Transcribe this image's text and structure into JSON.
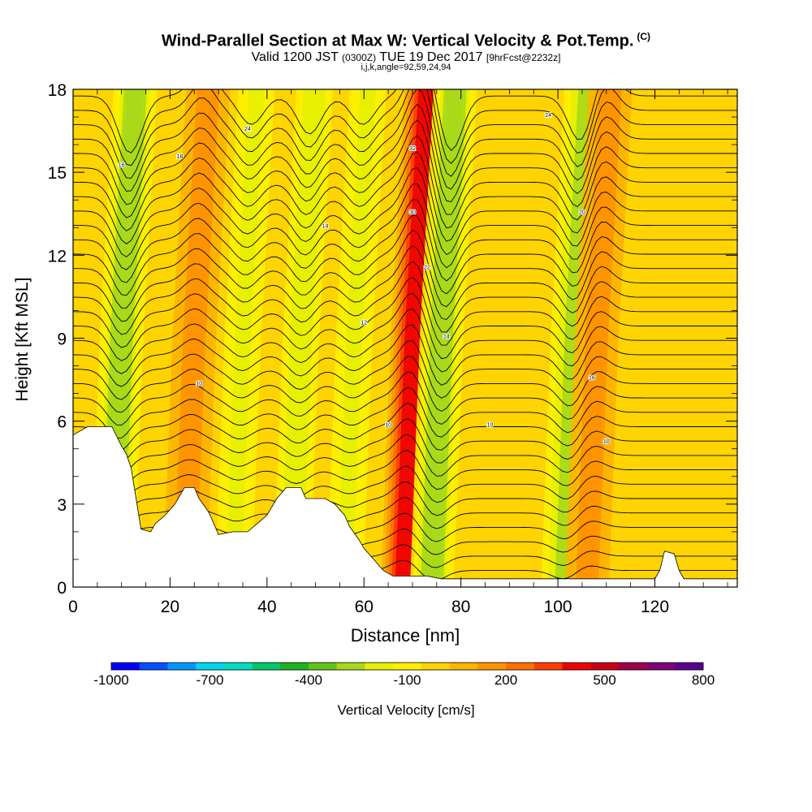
{
  "chart_data": {
    "type": "heatmap",
    "title": "Wind-Parallel Section at Max W: Vertical Velocity & Pot.Temp.",
    "title_tag": "(C)",
    "subtitle_parts": [
      "Valid 1200 JST",
      "(0300Z)",
      "TUE 19 Dec 2017",
      "[9hrFcst@2232z]"
    ],
    "subtitle2": "i,j,k,angle=92,59,24,94",
    "xlabel": "Distance [nm]",
    "ylabel": "Height [Kft MSL]",
    "xlim": [
      0,
      137
    ],
    "ylim": [
      0,
      18
    ],
    "x_ticks": [
      0,
      20,
      40,
      60,
      80,
      100,
      120
    ],
    "y_ticks": [
      0,
      3,
      6,
      9,
      12,
      15,
      18
    ],
    "colorbar": {
      "label": "Vertical Velocity [cm/s]",
      "tick_labels": [
        "-1000",
        "-700",
        "-400",
        "-100",
        "200",
        "500",
        "800"
      ],
      "tick_values": [
        -1000,
        -700,
        -400,
        -100,
        200,
        500,
        800
      ],
      "colors": [
        "#0000ff",
        "#0050ff",
        "#0095ff",
        "#00d5f0",
        "#00dcc0",
        "#00c868",
        "#20b020",
        "#60c418",
        "#a8d81a",
        "#e6ef00",
        "#fff000",
        "#ffd400",
        "#ffb400",
        "#ff9400",
        "#ff7000",
        "#ff3c00",
        "#f00000",
        "#c80014",
        "#a0004a",
        "#80007a",
        "#5a0090"
      ],
      "min": -1000,
      "max": 800
    },
    "velocity_features": [
      {
        "x": 10,
        "kind": "downdraft",
        "value": -300
      },
      {
        "x": 25,
        "kind": "updraft",
        "value": 150
      },
      {
        "x": 35,
        "kind": "downdraft",
        "value": -150
      },
      {
        "x": 47,
        "kind": "downdraft",
        "value": -200
      },
      {
        "x": 58,
        "kind": "downdraft",
        "value": -150
      },
      {
        "x": 70,
        "kind": "updraft",
        "value": 450
      },
      {
        "x": 76,
        "kind": "downdraft",
        "value": -300
      },
      {
        "x": 103,
        "kind": "downdraft",
        "value": -250
      },
      {
        "x": 108,
        "kind": "updraft",
        "value": 150
      }
    ],
    "terrain_kft": [
      [
        0,
        5.5
      ],
      [
        3,
        5.8
      ],
      [
        8,
        5.8
      ],
      [
        10,
        5.1
      ],
      [
        11,
        4.8
      ],
      [
        12,
        4.3
      ],
      [
        13,
        3.2
      ],
      [
        14,
        2.1
      ],
      [
        16,
        2.0
      ],
      [
        17,
        2.3
      ],
      [
        19,
        2.6
      ],
      [
        21,
        3.0
      ],
      [
        23,
        3.6
      ],
      [
        25,
        3.6
      ],
      [
        26,
        3.2
      ],
      [
        28,
        2.7
      ],
      [
        29,
        2.3
      ],
      [
        30,
        1.9
      ],
      [
        33,
        2.0
      ],
      [
        36,
        2.0
      ],
      [
        38,
        2.3
      ],
      [
        40,
        2.6
      ],
      [
        42,
        3.2
      ],
      [
        44,
        3.6
      ],
      [
        47,
        3.6
      ],
      [
        48,
        3.2
      ],
      [
        52,
        3.2
      ],
      [
        54,
        3.0
      ],
      [
        56,
        2.6
      ],
      [
        57,
        2.2
      ],
      [
        59,
        1.7
      ],
      [
        60,
        1.4
      ],
      [
        62,
        1.0
      ],
      [
        64,
        0.6
      ],
      [
        66,
        0.4
      ],
      [
        73,
        0.4
      ],
      [
        76,
        0.3
      ],
      [
        120,
        0.3
      ],
      [
        121,
        0.6
      ],
      [
        122,
        1.3
      ],
      [
        124,
        1.2
      ],
      [
        125,
        0.6
      ],
      [
        126,
        0.3
      ],
      [
        137,
        0.3
      ]
    ],
    "theta_contour_labels": [
      {
        "x": 10,
        "y": 15.2,
        "text": "16"
      },
      {
        "x": 22,
        "y": 15.5,
        "text": "18"
      },
      {
        "x": 36,
        "y": 16.5,
        "text": "24"
      },
      {
        "x": 52,
        "y": 13.0,
        "text": "14"
      },
      {
        "x": 60,
        "y": 9.5,
        "text": "12"
      },
      {
        "x": 70,
        "y": 15.8,
        "text": "32"
      },
      {
        "x": 70,
        "y": 13.5,
        "text": "30"
      },
      {
        "x": 73,
        "y": 11.5,
        "text": "22"
      },
      {
        "x": 77,
        "y": 9.0,
        "text": "14"
      },
      {
        "x": 86,
        "y": 5.8,
        "text": "10"
      },
      {
        "x": 98,
        "y": 17.0,
        "text": "24"
      },
      {
        "x": 105,
        "y": 13.5,
        "text": "20"
      },
      {
        "x": 107,
        "y": 7.5,
        "text": "16"
      },
      {
        "x": 110,
        "y": 5.2,
        "text": "10"
      },
      {
        "x": 26,
        "y": 7.3,
        "text": "10"
      },
      {
        "x": 65,
        "y": 5.8,
        "text": "10"
      }
    ]
  }
}
